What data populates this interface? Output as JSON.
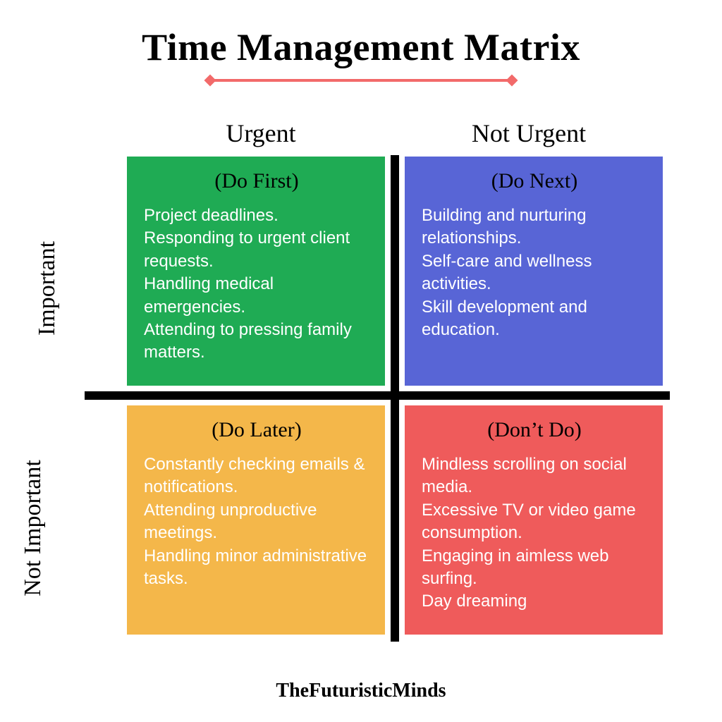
{
  "title": "Time Management Matrix",
  "underline_color": "#f26a6a",
  "columns": {
    "left": "Urgent",
    "right": "Not Urgent"
  },
  "rows": {
    "top": "Important",
    "bottom": "Not Important"
  },
  "cross_color": "#000000",
  "quadrants": {
    "q1": {
      "label": "(Do First)",
      "body": "Project deadlines.\nResponding to urgent client requests.\nHandling medical emergencies.\nAttending to pressing family matters.",
      "bg": "#1fab54"
    },
    "q2": {
      "label": "(Do Next)",
      "body": "Building and nurturing relationships.\nSelf-care and wellness activities.\nSkill development and education.",
      "bg": "#5865d6"
    },
    "q3": {
      "label": "(Do Later)",
      "body": "Constantly checking emails & notifications.\nAttending unproductive meetings.\nHandling minor administrative tasks.",
      "bg": "#f4b74a"
    },
    "q4": {
      "label": "(Don’t Do)",
      "body": "Mindless scrolling on social media.\nExcessive TV or video game consumption.\nEngaging in aimless web surfing.\nDay dreaming",
      "bg": "#ef5b5b"
    }
  },
  "footer": "TheFuturisticMinds",
  "style": {
    "title_fontsize": 54,
    "col_header_fontsize": 36,
    "row_label_fontsize": 34,
    "quad_title_fontsize": 30,
    "body_fontsize": 24,
    "body_color": "#ffffff",
    "background": "#ffffff",
    "cross_thickness": 12,
    "gap": 28
  }
}
